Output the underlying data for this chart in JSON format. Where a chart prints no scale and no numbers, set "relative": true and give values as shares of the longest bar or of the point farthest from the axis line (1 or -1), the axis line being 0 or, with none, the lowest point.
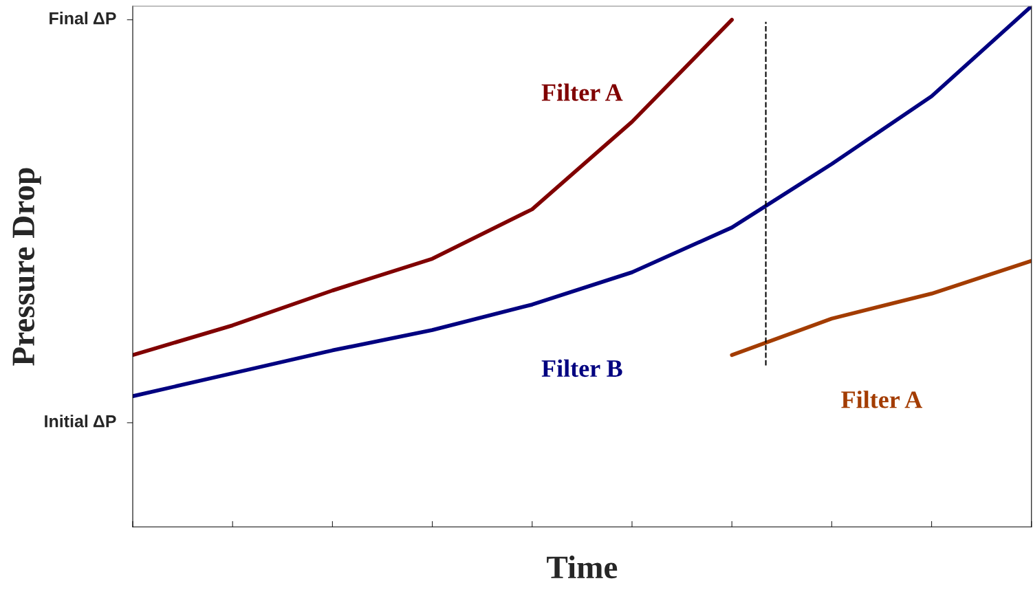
{
  "chart_data": {
    "type": "line",
    "relative": true,
    "xlabel": "Time",
    "ylabel": "Pressure Drop",
    "categories": [
      null,
      null,
      null,
      null,
      null,
      null,
      null,
      null,
      null,
      null
    ],
    "series": [
      {
        "name": "Filter A",
        "color": "#800000",
        "values": [
          0.33,
          0.387,
          0.454,
          0.515,
          0.61,
          0.778,
          0.974,
          null,
          null,
          null
        ]
      },
      {
        "name": "Filter B",
        "color": "#000080",
        "values": [
          0.251,
          0.295,
          0.339,
          0.378,
          0.427,
          0.489,
          0.575,
          0.697,
          0.827,
          1.0
        ]
      },
      {
        "name": "Filter A",
        "color": "#a33c00",
        "values": [
          null,
          null,
          null,
          null,
          null,
          null,
          0.33,
          0.4,
          0.448,
          0.511
        ]
      }
    ],
    "annotations": [
      "Initial ΔP",
      "Final ΔP"
    ],
    "grid": false,
    "legend": false,
    "tick_labels": false,
    "marker": "none",
    "line_style": "solid"
  }
}
